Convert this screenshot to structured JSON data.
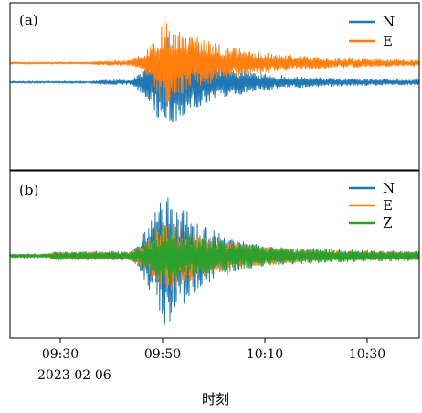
{
  "chart_data": [
    {
      "panel": "a",
      "panel_label": "(a)",
      "type": "line",
      "xlabel": "",
      "ylabel": "",
      "legend_position": "top-right",
      "series": [
        {
          "name": "N",
          "color": "#1f77b4",
          "style": "seismic trace, offset below center, peak amplitude near 09:50"
        },
        {
          "name": "E",
          "color": "#ff7f0e",
          "style": "seismic trace, offset above center, peak amplitude near 09:50"
        }
      ]
    },
    {
      "panel": "b",
      "panel_label": "(b)",
      "type": "line",
      "xlabel": "时刻",
      "ylabel": "",
      "legend_position": "top-right",
      "x_ticks": [
        "09:30",
        "09:50",
        "10:10",
        "10:30"
      ],
      "x_date_label": "2023-02-06",
      "series": [
        {
          "name": "N",
          "color": "#1f77b4",
          "style": "seismic trace, largest amplitude near 09:50"
        },
        {
          "name": "E",
          "color": "#ff7f0e",
          "style": "seismic trace"
        },
        {
          "name": "Z",
          "color": "#2ca02c",
          "style": "seismic trace"
        }
      ]
    }
  ]
}
